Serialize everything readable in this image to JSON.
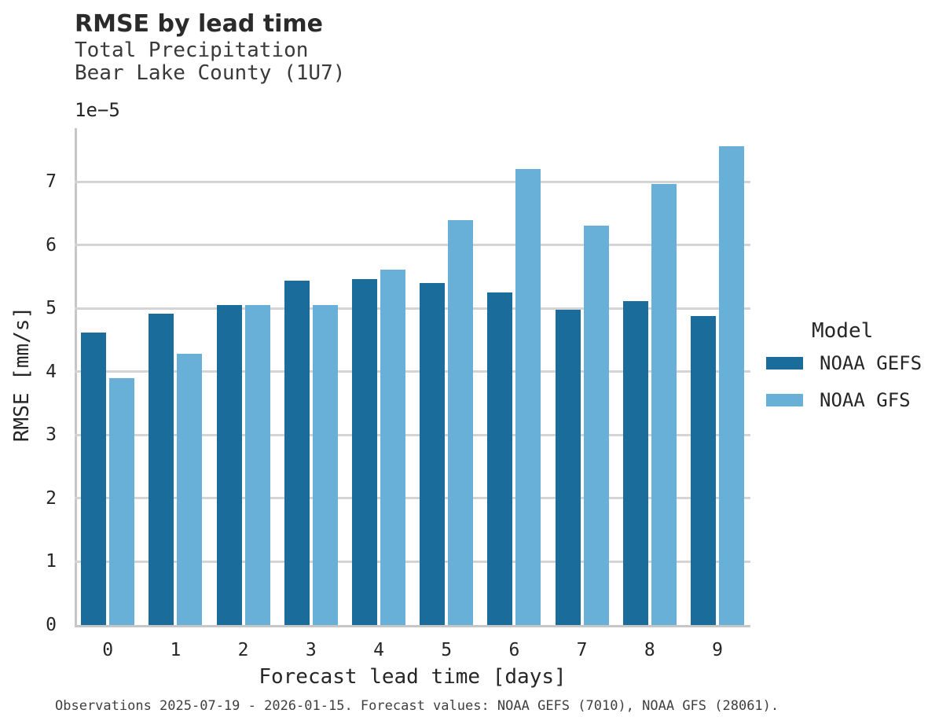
{
  "header": {
    "title": "RMSE by lead time",
    "subtitle_line1": "Total Precipitation",
    "subtitle_line2": "Bear Lake County (1U7)"
  },
  "footer": {
    "note": "Observations 2025-07-19 - 2026-01-15. Forecast values: NOAA GEFS (7010), NOAA GFS (28061)."
  },
  "chart_data": {
    "type": "bar",
    "title": "RMSE by lead time",
    "subtitle": [
      "Total Precipitation",
      "Bear Lake County (1U7)"
    ],
    "categories": [
      0,
      1,
      2,
      3,
      4,
      5,
      6,
      7,
      8,
      9
    ],
    "series": [
      {
        "name": "NOAA GEFS",
        "color": "#1a6d9b",
        "values": [
          4.62,
          4.92,
          5.05,
          5.44,
          5.47,
          5.4,
          5.25,
          4.98,
          5.12,
          4.88
        ]
      },
      {
        "name": "NOAA GFS",
        "color": "#69b0d8",
        "values": [
          3.9,
          4.28,
          5.06,
          5.06,
          5.61,
          6.4,
          7.2,
          6.31,
          6.97,
          7.57
        ]
      }
    ],
    "value_unit_multiplier": "1e−5",
    "xlabel": "Forecast lead time [days]",
    "ylabel": "RMSE [mm/s]",
    "ylim": [
      0,
      7.85
    ],
    "yticks": [
      0,
      1,
      2,
      3,
      4,
      5,
      6,
      7
    ],
    "grid": true,
    "legend_title": "Model",
    "legend_position": "right",
    "note": "Observations 2025-07-19 - 2026-01-15. Forecast values: NOAA GEFS (7010), NOAA GFS (28061)."
  },
  "colors": {
    "series_dark": "#1a6d9b",
    "series_light": "#69b0d8",
    "grid": "#d4d4d4",
    "spine": "#c6c6c6",
    "text": "#262626"
  }
}
